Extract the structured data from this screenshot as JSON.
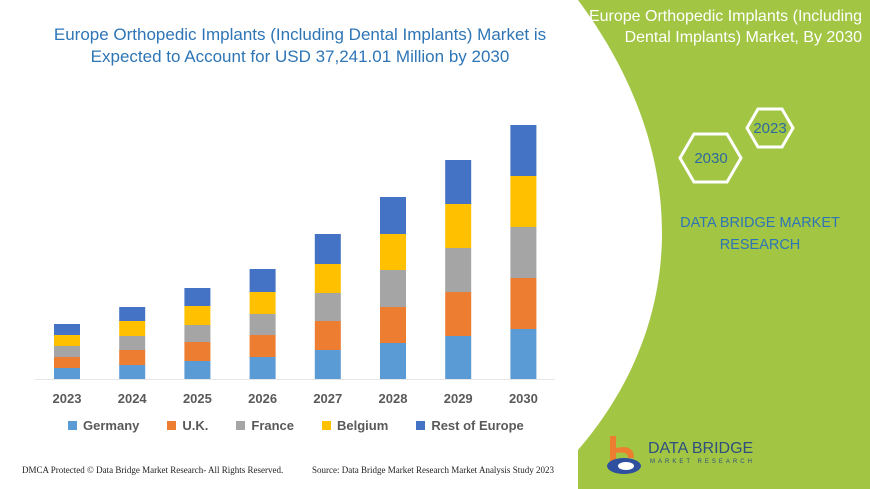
{
  "title": "Europe Orthopedic Implants (Including Dental Implants) Market is Expected to Account for USD 37,241.01 Million by 2030",
  "side_panel": {
    "title": "Europe Orthopedic Implants (Including Dental Implants) Market, By 2030",
    "hex_labels": [
      "2023",
      "2030"
    ],
    "brand": "DATA BRIDGE MARKET RESEARCH",
    "color": "#a2c544"
  },
  "logo": {
    "name": "DATA BRIDGE",
    "sub": "MARKET RESEARCH"
  },
  "footer": {
    "left": "DMCA Protected © Data Bridge Market Research- All Rights Reserved.",
    "right": "Source: Data Bridge Market Research Market Analysis Study 2023"
  },
  "chart_data": {
    "type": "bar",
    "stacked": true,
    "categories": [
      "2023",
      "2024",
      "2025",
      "2026",
      "2027",
      "2028",
      "2029",
      "2030"
    ],
    "series": [
      {
        "name": "Germany",
        "color": "#5b9bd5",
        "values": [
          11,
          14,
          18,
          22,
          29,
          36,
          43,
          50
        ]
      },
      {
        "name": "U.K.",
        "color": "#ed7d31",
        "values": [
          11,
          15,
          19,
          22,
          29,
          36,
          44,
          51
        ]
      },
      {
        "name": "France",
        "color": "#a5a5a5",
        "values": [
          11,
          14,
          17,
          21,
          28,
          37,
          44,
          51
        ]
      },
      {
        "name": "Belgium",
        "color": "#ffc000",
        "values": [
          11,
          15,
          19,
          22,
          29,
          36,
          44,
          51
        ]
      },
      {
        "name": "Rest of Europe",
        "color": "#4472c4",
        "values": [
          11,
          14,
          18,
          23,
          30,
          37,
          44,
          51
        ]
      }
    ],
    "legend": "bottom",
    "grid": false,
    "y_axis_shown": false
  }
}
